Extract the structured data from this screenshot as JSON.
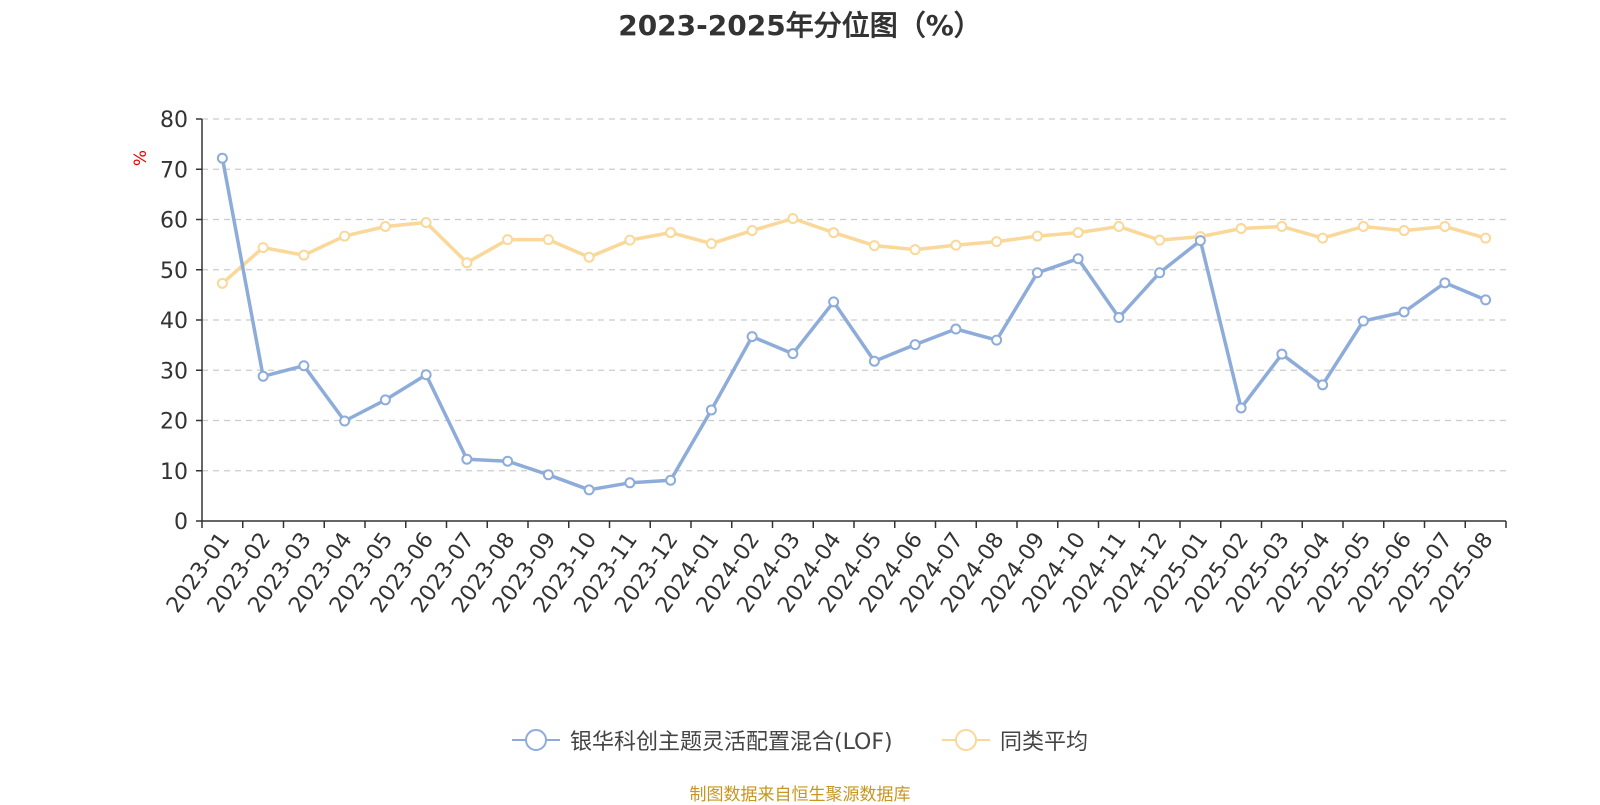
{
  "title": "2023-2025年分位图（%）",
  "source": "制图数据来自恒生聚源数据库",
  "chart_data": {
    "type": "line",
    "ylabel": "%",
    "ylim": [
      0,
      80
    ],
    "yticks": [
      0,
      10,
      20,
      30,
      40,
      50,
      60,
      70,
      80
    ],
    "grid": true,
    "legend_position": "bottom",
    "categories": [
      "2023-01",
      "2023-02",
      "2023-03",
      "2023-04",
      "2023-05",
      "2023-06",
      "2023-07",
      "2023-08",
      "2023-09",
      "2023-10",
      "2023-11",
      "2023-12",
      "2024-01",
      "2024-02",
      "2024-03",
      "2024-04",
      "2024-05",
      "2024-06",
      "2024-07",
      "2024-08",
      "2024-09",
      "2024-10",
      "2024-11",
      "2024-12",
      "2025-01",
      "2025-02",
      "2025-03",
      "2025-04",
      "2025-05",
      "2025-06",
      "2025-07",
      "2025-08"
    ],
    "series": [
      {
        "name": "银华科创主题灵活配置混合(LOF)",
        "color": "#8eacda",
        "values": [
          72.2,
          28.8,
          30.9,
          19.9,
          24.1,
          29.1,
          12.3,
          11.9,
          9.2,
          6.2,
          7.6,
          8.1,
          22.1,
          36.7,
          33.3,
          43.6,
          31.8,
          35.1,
          38.2,
          36.0,
          49.4,
          52.2,
          40.5,
          49.4,
          55.8,
          22.5,
          33.2,
          27.1,
          39.8,
          41.6,
          47.4,
          44.0
        ]
      },
      {
        "name": "同类平均",
        "color": "#f9d899",
        "values": [
          47.3,
          54.4,
          52.9,
          56.7,
          58.6,
          59.4,
          51.4,
          56.0,
          56.0,
          52.5,
          55.9,
          57.4,
          55.2,
          57.8,
          60.2,
          57.4,
          54.8,
          54.0,
          54.9,
          55.6,
          56.7,
          57.4,
          58.6,
          55.9,
          56.6,
          58.2,
          58.6,
          56.3,
          58.6,
          57.8,
          58.6,
          56.3
        ]
      }
    ]
  }
}
